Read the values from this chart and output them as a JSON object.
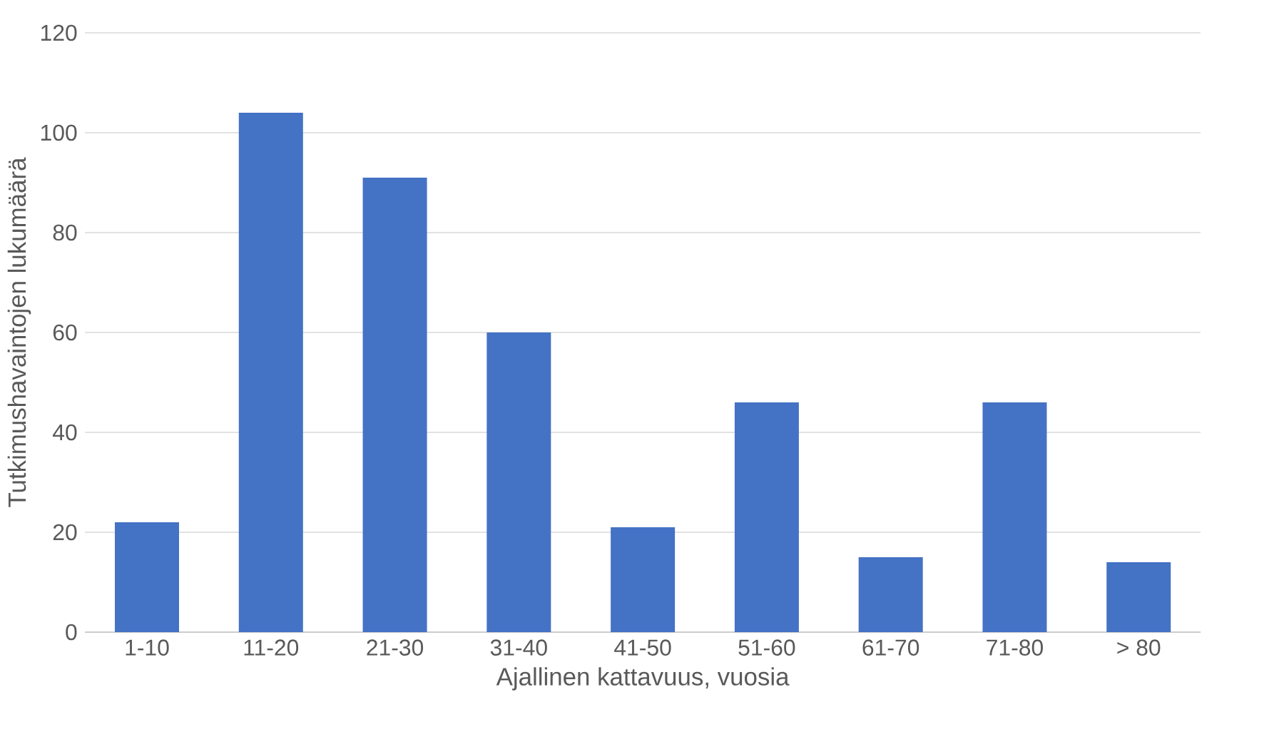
{
  "chart_data": {
    "type": "bar",
    "xlabel": "Ajallinen kattavuus, vuosia",
    "ylabel": "Tutkimushavaintojen lukumäärä",
    "categories": [
      "1-10",
      "11-20",
      "21-30",
      "31-40",
      "41-50",
      "51-60",
      "61-70",
      "71-80",
      "> 80"
    ],
    "values": [
      22,
      104,
      91,
      60,
      21,
      46,
      15,
      46,
      14
    ],
    "color": "#4472c4",
    "ylim": [
      0,
      120
    ],
    "yticks": [
      0,
      20,
      40,
      60,
      80,
      100,
      120
    ],
    "grid": "y"
  }
}
